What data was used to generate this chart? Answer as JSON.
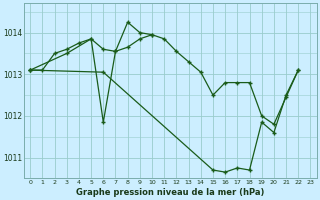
{
  "title": "Graphe pression niveau de la mer (hPa)",
  "bg_color": "#cceeff",
  "grid_color": "#99cccc",
  "line_color": "#1a5c1a",
  "marker_color": "#1a5c1a",
  "xlim": [
    -0.5,
    23.5
  ],
  "ylim": [
    1010.5,
    1014.7
  ],
  "yticks": [
    1011,
    1012,
    1013,
    1014
  ],
  "xticks": [
    0,
    1,
    2,
    3,
    4,
    5,
    6,
    7,
    8,
    9,
    10,
    11,
    12,
    13,
    14,
    15,
    16,
    17,
    18,
    19,
    20,
    21,
    22,
    23
  ],
  "series": [
    {
      "points": [
        [
          0,
          1013.1
        ],
        [
          1,
          1013.1
        ],
        [
          2,
          1013.5
        ],
        [
          3,
          1013.6
        ],
        [
          4,
          1013.75
        ],
        [
          5,
          1013.85
        ],
        [
          6,
          1013.6
        ],
        [
          7,
          1013.55
        ],
        [
          8,
          1013.65
        ],
        [
          9,
          1013.85
        ],
        [
          10,
          1013.95
        ],
        [
          11,
          1013.85
        ],
        [
          12,
          1013.55
        ],
        [
          13,
          1013.3
        ],
        [
          14,
          1013.05
        ],
        [
          15,
          1012.5
        ],
        [
          16,
          1012.8
        ],
        [
          17,
          1012.8
        ],
        [
          18,
          1012.8
        ],
        [
          19,
          1012.0
        ],
        [
          20,
          1011.8
        ],
        [
          21,
          1012.45
        ],
        [
          22,
          1013.1
        ]
      ]
    },
    {
      "points": [
        [
          0,
          1013.1
        ],
        [
          3,
          1013.5
        ],
        [
          5,
          1013.85
        ],
        [
          6,
          1011.85
        ],
        [
          7,
          1013.55
        ],
        [
          8,
          1014.25
        ],
        [
          9,
          1014.0
        ],
        [
          10,
          1013.95
        ]
      ]
    },
    {
      "points": [
        [
          0,
          1013.1
        ],
        [
          6,
          1013.05
        ],
        [
          15,
          1010.7
        ],
        [
          16,
          1010.65
        ],
        [
          17,
          1010.75
        ],
        [
          18,
          1010.7
        ],
        [
          19,
          1011.85
        ],
        [
          20,
          1011.6
        ],
        [
          21,
          1012.5
        ],
        [
          22,
          1013.1
        ]
      ]
    }
  ]
}
